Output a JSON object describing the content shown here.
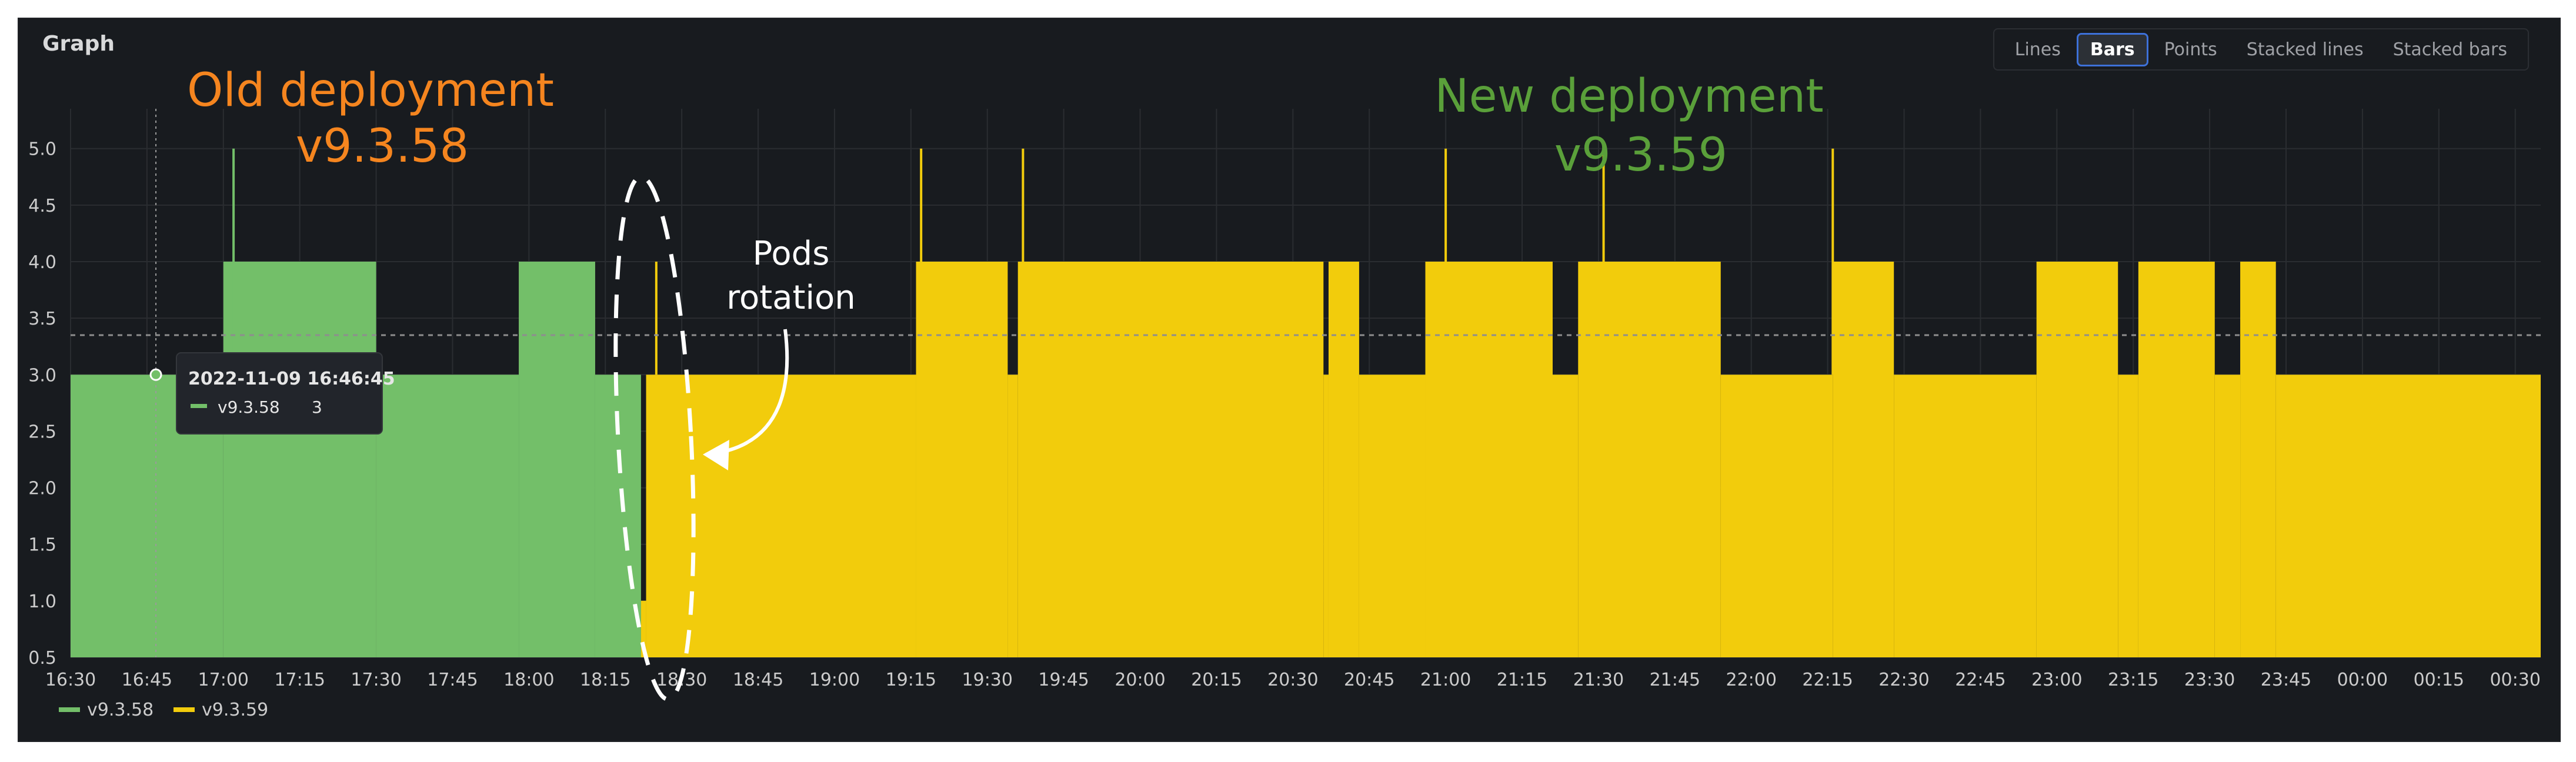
{
  "panel": {
    "title": "Graph"
  },
  "view_switcher": {
    "options": [
      "Lines",
      "Bars",
      "Points",
      "Stacked lines",
      "Stacked bars"
    ],
    "selected": "Bars"
  },
  "colors": {
    "panel_bg": "#181b1f",
    "grid": "#2a2d31",
    "axis_text": "#cccccc",
    "series_old": "#73bf69",
    "series_new": "#f2cc0c",
    "annot_old": "#f5851f",
    "annot_new": "#5aa03a",
    "annot_pods": "#ffffff",
    "accent": "#3d71d9"
  },
  "chart_data": {
    "type": "area",
    "title": "Graph",
    "xlabel": "",
    "ylabel": "",
    "x_range": [
      "2022-11-09 16:30",
      "2022-11-10 00:35"
    ],
    "ylim": [
      0.5,
      5.3
    ],
    "y_ticks": [
      "0.5",
      "1.0",
      "1.5",
      "2.0",
      "2.5",
      "3.0",
      "3.5",
      "4.0",
      "4.5",
      "5.0"
    ],
    "x_ticks": [
      "16:30",
      "16:45",
      "17:00",
      "17:15",
      "17:30",
      "17:45",
      "18:00",
      "18:15",
      "18:30",
      "18:45",
      "19:00",
      "19:15",
      "19:30",
      "19:45",
      "20:00",
      "20:15",
      "20:30",
      "20:45",
      "21:00",
      "21:15",
      "21:30",
      "21:45",
      "22:00",
      "22:15",
      "22:30",
      "22:45",
      "23:00",
      "23:15",
      "23:30",
      "23:45",
      "00:00",
      "00:15",
      "00:30"
    ],
    "grid": true,
    "legend_placement": "bottom-left",
    "series": [
      {
        "name": "v9.3.58",
        "color": "#73bf69",
        "steps": [
          [
            "16:30",
            3
          ],
          [
            "17:00",
            4
          ],
          [
            "17:30",
            3
          ],
          [
            "17:58",
            4
          ],
          [
            "18:13",
            3
          ],
          [
            "18:22",
            1
          ],
          [
            "18:23",
            0
          ]
        ],
        "spikes": [
          [
            "17:02",
            5
          ]
        ]
      },
      {
        "name": "v9.3.59",
        "color": "#f2cc0c",
        "steps": [
          [
            "18:22",
            1
          ],
          [
            "18:23",
            3
          ],
          [
            "19:16",
            4
          ],
          [
            "19:34",
            3
          ],
          [
            "19:36",
            4
          ],
          [
            "20:36",
            3
          ],
          [
            "20:37",
            4
          ],
          [
            "20:43",
            3
          ],
          [
            "20:56",
            4
          ],
          [
            "21:21",
            3
          ],
          [
            "21:26",
            4
          ],
          [
            "21:54",
            3
          ],
          [
            "22:16",
            4
          ],
          [
            "22:28",
            3
          ],
          [
            "22:56",
            4
          ],
          [
            "23:12",
            3
          ],
          [
            "23:16",
            4
          ],
          [
            "23:31",
            3
          ],
          [
            "23:36",
            4
          ],
          [
            "23:43",
            3
          ],
          [
            "00:35",
            0
          ]
        ],
        "spikes": [
          [
            "19:17",
            5
          ],
          [
            "19:37",
            5
          ],
          [
            "21:00",
            5
          ],
          [
            "21:31",
            5
          ],
          [
            "22:16",
            5
          ],
          [
            "18:25",
            4
          ]
        ]
      }
    ],
    "threshold_line": 3.35,
    "hover_time": "16:46:45",
    "tooltip": {
      "time": "2022-11-09 16:46:45",
      "series": "v9.3.58",
      "value": "3"
    },
    "annotations": {
      "old_line1": "Old deployment",
      "old_line2": "v9.3.58",
      "new_line1": "New deployment",
      "new_line2": "v9.3.59",
      "pods_line1": "Pods",
      "pods_line2": "rotation"
    }
  }
}
